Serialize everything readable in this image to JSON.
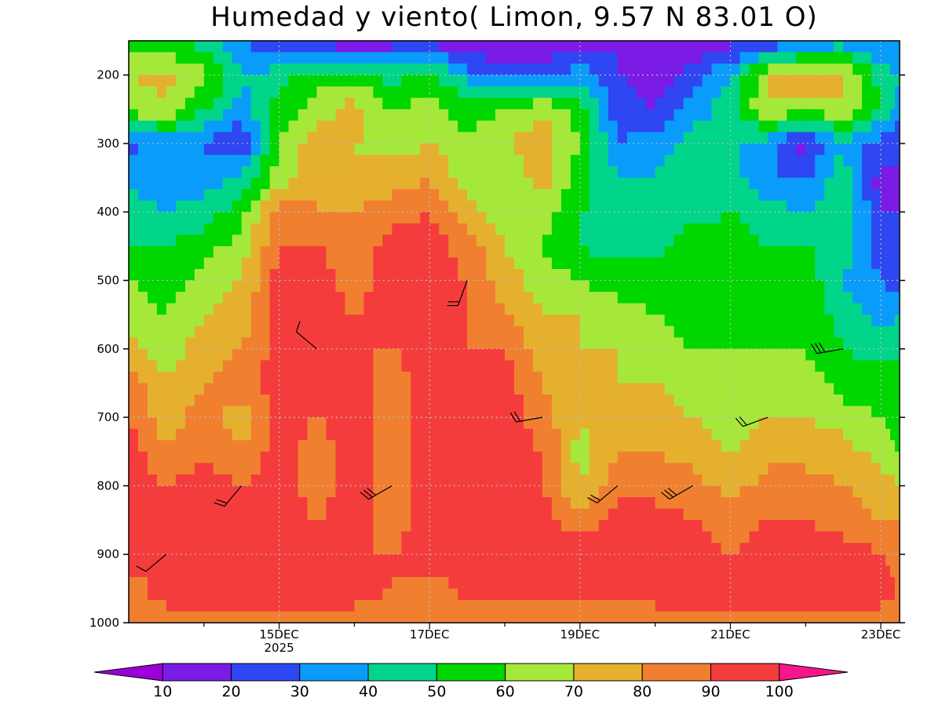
{
  "chart_data": {
    "type": "heatmap",
    "title": "Humedad y viento( Limon, 9.57  N 83.01  O)",
    "xlabel": "",
    "ylabel": "",
    "y_axis": {
      "ticks": [
        200,
        300,
        400,
        500,
        600,
        700,
        800,
        900,
        1000
      ],
      "range": [
        150,
        1000
      ],
      "inverted": true
    },
    "x_axis": {
      "ticks": [
        {
          "day": 15,
          "label": "15DEC",
          "sublabel": "2025"
        },
        {
          "day": 17,
          "label": "17DEC",
          "sublabel": ""
        },
        {
          "day": 19,
          "label": "19DEC",
          "sublabel": ""
        },
        {
          "day": 21,
          "label": "21DEC",
          "sublabel": ""
        },
        {
          "day": 23,
          "label": "23DEC",
          "sublabel": ""
        }
      ],
      "range": [
        13.0,
        23.25
      ]
    },
    "grid": true,
    "grid_style": "dotted",
    "colorbar": {
      "position": "bottom",
      "levels": [
        10,
        20,
        30,
        40,
        50,
        60,
        70,
        80,
        90,
        100
      ],
      "colors": [
        "#9b00d8",
        "#7a1be6",
        "#2f46f3",
        "#0a9cfa",
        "#00d58a",
        "#00d600",
        "#a6e83a",
        "#e6b02f",
        "#f08030",
        "#f53c3c",
        "#f5168d"
      ],
      "labels": [
        "10",
        "20",
        "30",
        "40",
        "50",
        "60",
        "70",
        "80",
        "90",
        "100"
      ]
    },
    "time_steps": [
      13.0,
      13.5,
      14.0,
      14.5,
      15.0,
      15.5,
      16.0,
      16.5,
      17.0,
      17.5,
      18.0,
      18.5,
      19.0,
      19.5,
      20.0,
      20.5,
      21.0,
      21.5,
      22.0,
      22.5,
      23.0,
      23.25
    ],
    "pressure_levels": [
      150,
      200,
      250,
      300,
      350,
      400,
      450,
      500,
      550,
      600,
      650,
      700,
      750,
      800,
      850,
      900,
      950,
      1000
    ],
    "humidity": [
      [
        55,
        50,
        45,
        30,
        20,
        15,
        10,
        15,
        15,
        10,
        10,
        10,
        15,
        20,
        10,
        10,
        15,
        20,
        30,
        35,
        30,
        30
      ],
      [
        70,
        72,
        65,
        40,
        45,
        55,
        55,
        45,
        55,
        35,
        25,
        25,
        35,
        20,
        15,
        25,
        40,
        70,
        75,
        70,
        45,
        40
      ],
      [
        65,
        70,
        50,
        35,
        55,
        65,
        75,
        60,
        65,
        55,
        60,
        70,
        55,
        25,
        20,
        35,
        45,
        70,
        65,
        70,
        50,
        35
      ],
      [
        25,
        35,
        30,
        20,
        60,
        75,
        70,
        65,
        70,
        60,
        70,
        75,
        60,
        30,
        35,
        45,
        40,
        35,
        15,
        40,
        25,
        20
      ],
      [
        40,
        30,
        35,
        40,
        65,
        80,
        70,
        75,
        80,
        65,
        60,
        75,
        55,
        40,
        40,
        50,
        45,
        30,
        30,
        45,
        15,
        20
      ],
      [
        45,
        40,
        45,
        55,
        85,
        80,
        80,
        85,
        90,
        75,
        60,
        65,
        50,
        45,
        40,
        45,
        50,
        45,
        40,
        50,
        20,
        20
      ],
      [
        50,
        50,
        55,
        65,
        90,
        90,
        85,
        95,
        95,
        85,
        70,
        60,
        50,
        45,
        45,
        60,
        55,
        50,
        50,
        45,
        25,
        25
      ],
      [
        60,
        55,
        65,
        70,
        95,
        95,
        85,
        95,
        95,
        90,
        75,
        65,
        60,
        55,
        55,
        60,
        60,
        60,
        55,
        40,
        30,
        25
      ],
      [
        65,
        60,
        70,
        75,
        95,
        95,
        90,
        95,
        95,
        90,
        80,
        70,
        70,
        65,
        60,
        55,
        60,
        55,
        60,
        45,
        35,
        40
      ],
      [
        75,
        65,
        75,
        80,
        95,
        95,
        90,
        90,
        95,
        90,
        90,
        75,
        70,
        70,
        65,
        60,
        60,
        60,
        60,
        50,
        45,
        50
      ],
      [
        85,
        70,
        80,
        85,
        95,
        95,
        95,
        85,
        95,
        90,
        95,
        80,
        70,
        70,
        70,
        65,
        60,
        65,
        65,
        55,
        55,
        50
      ],
      [
        90,
        75,
        85,
        75,
        95,
        90,
        95,
        85,
        95,
        90,
        95,
        85,
        70,
        75,
        75,
        70,
        65,
        70,
        70,
        65,
        60,
        55
      ],
      [
        95,
        80,
        90,
        80,
        95,
        85,
        95,
        85,
        95,
        95,
        95,
        90,
        65,
        80,
        80,
        75,
        70,
        75,
        75,
        75,
        65,
        60
      ],
      [
        95,
        90,
        95,
        90,
        95,
        85,
        95,
        85,
        95,
        95,
        95,
        90,
        70,
        85,
        85,
        85,
        75,
        85,
        85,
        80,
        75,
        70
      ],
      [
        95,
        95,
        95,
        95,
        95,
        90,
        95,
        85,
        95,
        95,
        95,
        95,
        85,
        95,
        95,
        90,
        85,
        90,
        90,
        85,
        80,
        80
      ],
      [
        95,
        95,
        95,
        95,
        95,
        95,
        90,
        90,
        95,
        95,
        95,
        95,
        95,
        95,
        95,
        95,
        90,
        95,
        95,
        95,
        90,
        85
      ],
      [
        85,
        95,
        95,
        95,
        95,
        95,
        95,
        90,
        85,
        95,
        95,
        95,
        95,
        95,
        95,
        95,
        95,
        95,
        95,
        95,
        95,
        90
      ],
      [
        85,
        85,
        85,
        85,
        85,
        85,
        85,
        85,
        80,
        80,
        85,
        80,
        80,
        80,
        85,
        85,
        85,
        85,
        85,
        85,
        85,
        85
      ]
    ],
    "wind_barbs_sample": [
      {
        "day": 13.5,
        "p": 900,
        "dir": 230,
        "speed": 10
      },
      {
        "day": 14.5,
        "p": 800,
        "dir": 220,
        "speed": 15
      },
      {
        "day": 15.5,
        "p": 600,
        "dir": 310,
        "speed": 10
      },
      {
        "day": 16.5,
        "p": 800,
        "dir": 240,
        "speed": 25
      },
      {
        "day": 17.5,
        "p": 500,
        "dir": 200,
        "speed": 15
      },
      {
        "day": 18.5,
        "p": 700,
        "dir": 260,
        "speed": 15
      },
      {
        "day": 19.5,
        "p": 800,
        "dir": 230,
        "speed": 20
      },
      {
        "day": 20.5,
        "p": 800,
        "dir": 240,
        "speed": 25
      },
      {
        "day": 21.5,
        "p": 700,
        "dir": 250,
        "speed": 15
      },
      {
        "day": 22.5,
        "p": 600,
        "dir": 260,
        "speed": 30
      }
    ]
  }
}
